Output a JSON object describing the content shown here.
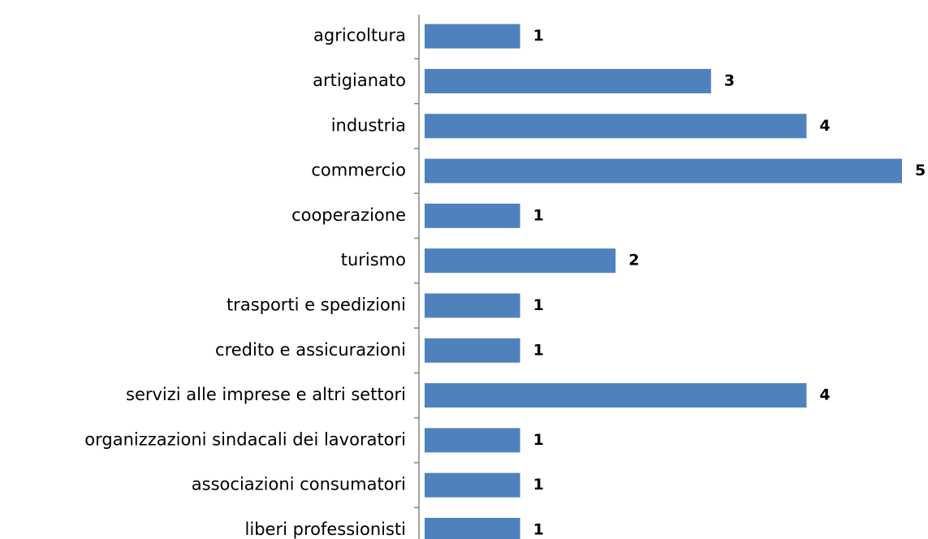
{
  "chart_data": {
    "type": "bar",
    "orientation": "horizontal",
    "categories": [
      "agricoltura",
      "artigianato",
      "industria",
      "commercio",
      "cooperazione",
      "turismo",
      "trasporti e spedizioni",
      "credito e assicurazioni",
      "servizi alle imprese e altri settori",
      "organizzazioni sindacali dei lavoratori",
      "associazioni consumatori",
      "liberi professionisti"
    ],
    "values": [
      1,
      3,
      4,
      5,
      1,
      2,
      1,
      1,
      4,
      1,
      1,
      1
    ],
    "color": "#4f81bd"
  }
}
